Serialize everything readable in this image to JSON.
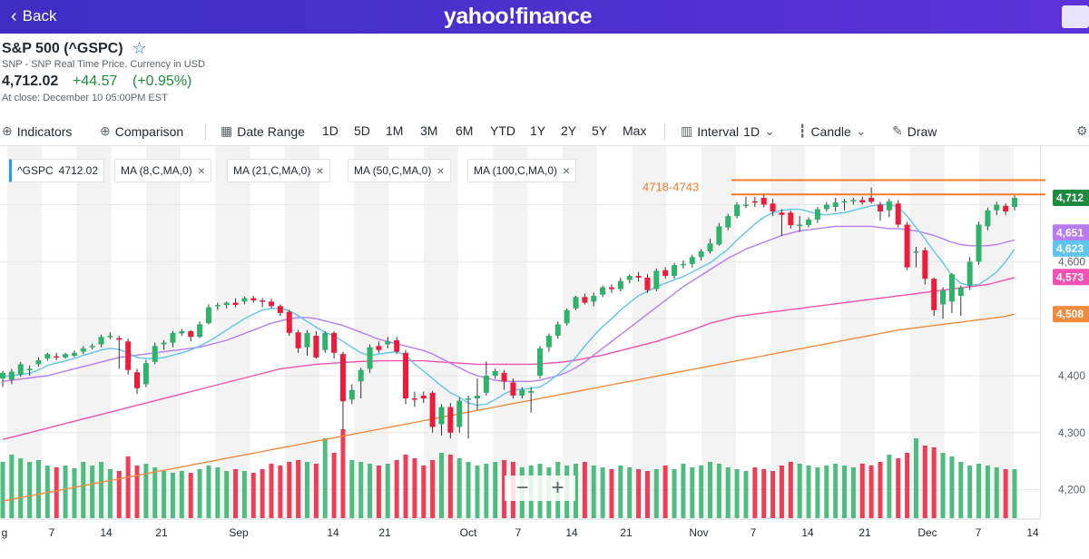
{
  "header": {
    "back_label": "Back",
    "logo": "yahoo!finance"
  },
  "quote": {
    "title": "S&P 500 (^GSPC)",
    "subtitle": "SNP - SNP Real Time Price. Currency in USD",
    "price": "4,712.02",
    "change": "+44.57",
    "change_pct": "(+0.95%)",
    "close_time": "At close: December 10 05:00PM EST"
  },
  "toolbar": {
    "indicators": "Indicators",
    "comparison": "Comparison",
    "date_range": "Date Range",
    "ranges": [
      "1D",
      "5D",
      "1M",
      "3M",
      "6M",
      "YTD",
      "1Y",
      "2Y",
      "5Y",
      "Max"
    ],
    "interval": "Interval",
    "interval_value": "1D",
    "candle": "Candle",
    "draw": "Draw"
  },
  "legend": {
    "symbol": "^GSPC",
    "symbol_value": "4712.02",
    "ma8": "MA (8,C,MA,0)",
    "ma21": "MA (21,C,MA,0)",
    "ma50": "MA (50,C,MA,0)",
    "ma100": "MA (100,C,MA,0)"
  },
  "annotation": "4718-4743",
  "zoom": {
    "minus": "−",
    "plus": "+"
  },
  "colors": {
    "up": "#2fb36a",
    "down": "#ee1c3a",
    "ma8": "#5fc5ef",
    "ma21": "#b97cf0",
    "ma50": "#f051b4",
    "ma100": "#f08a3c",
    "annotation": "#f07c2a",
    "price_tag": "#1d8a3e"
  },
  "chart_data": {
    "type": "candlestick",
    "y_ticks": [
      "4,712",
      "4,651",
      "4,623",
      "4,600",
      "4,573",
      "4,508",
      "4,400",
      "4,300",
      "4,200"
    ],
    "x_ticks": [
      "g",
      "7",
      "14",
      "21",
      "Sep",
      "14",
      "21",
      "Oct",
      "7",
      "14",
      "21",
      "Nov",
      "7",
      "14",
      "21",
      "Dec",
      "7",
      "14"
    ],
    "ylim": [
      4150,
      4790
    ],
    "zones": [
      4718,
      4743
    ],
    "candles": [
      [
        4395,
        4405,
        4380,
        4408
      ],
      [
        4393,
        4407,
        4385,
        4412
      ],
      [
        4402,
        4420,
        4398,
        4424
      ],
      [
        4410,
        4412,
        4400,
        4418
      ],
      [
        4420,
        4427,
        4416,
        4432
      ],
      [
        4430,
        4438,
        4426,
        4440
      ],
      [
        4434,
        4432,
        4427,
        4440
      ],
      [
        4432,
        4438,
        4430,
        4440
      ],
      [
        4435,
        4440,
        4432,
        4444
      ],
      [
        4442,
        4448,
        4438,
        4452
      ],
      [
        4450,
        4452,
        4446,
        4456
      ],
      [
        4455,
        4468,
        4450,
        4472
      ],
      [
        4468,
        4470,
        4464,
        4476
      ],
      [
        4466,
        4463,
        4412,
        4470
      ],
      [
        4460,
        4410,
        4402,
        4465
      ],
      [
        4406,
        4378,
        4368,
        4412
      ],
      [
        4385,
        4422,
        4380,
        4428
      ],
      [
        4424,
        4452,
        4420,
        4458
      ],
      [
        4455,
        4458,
        4445,
        4462
      ],
      [
        4458,
        4475,
        4450,
        4478
      ],
      [
        4474,
        4478,
        4470,
        4482
      ],
      [
        4478,
        4468,
        4460,
        4480
      ],
      [
        4468,
        4490,
        4466,
        4495
      ],
      [
        4492,
        4520,
        4490,
        4525
      ],
      [
        4522,
        4524,
        4515,
        4528
      ],
      [
        4524,
        4528,
        4518,
        4530
      ],
      [
        4528,
        4524,
        4520,
        4536
      ],
      [
        4530,
        4536,
        4525,
        4539
      ],
      [
        4536,
        4532,
        4528,
        4540
      ],
      [
        4532,
        4530,
        4520,
        4536
      ],
      [
        4530,
        4522,
        4518,
        4535
      ],
      [
        4522,
        4510,
        4505,
        4525
      ],
      [
        4512,
        4475,
        4470,
        4515
      ],
      [
        4476,
        4448,
        4440,
        4480
      ],
      [
        4450,
        4475,
        4435,
        4480
      ],
      [
        4470,
        4432,
        4430,
        4478
      ],
      [
        4445,
        4475,
        4440,
        4478
      ],
      [
        4475,
        4440,
        4430,
        4478
      ],
      [
        4438,
        4355,
        4305,
        4442
      ],
      [
        4358,
        4375,
        4350,
        4385
      ],
      [
        4390,
        4410,
        4360,
        4414
      ],
      [
        4412,
        4450,
        4405,
        4455
      ],
      [
        4452,
        4445,
        4440,
        4460
      ],
      [
        4455,
        4460,
        4448,
        4468
      ],
      [
        4462,
        4442,
        4438,
        4468
      ],
      [
        4440,
        4360,
        4350,
        4445
      ],
      [
        4360,
        4358,
        4345,
        4372
      ],
      [
        4365,
        4360,
        4352,
        4372
      ],
      [
        4370,
        4310,
        4300,
        4373
      ],
      [
        4315,
        4345,
        4295,
        4350
      ],
      [
        4345,
        4300,
        4290,
        4352
      ],
      [
        4310,
        4356,
        4300,
        4362
      ],
      [
        4360,
        4360,
        4290,
        4365
      ],
      [
        4360,
        4365,
        4340,
        4395
      ],
      [
        4370,
        4400,
        4365,
        4425
      ],
      [
        4400,
        4408,
        4395,
        4412
      ],
      [
        4405,
        4390,
        4375,
        4410
      ],
      [
        4388,
        4365,
        4360,
        4395
      ],
      [
        4365,
        4375,
        4360,
        4380
      ],
      [
        4370,
        4373,
        4335,
        4380
      ],
      [
        4400,
        4448,
        4395,
        4452
      ],
      [
        4450,
        4470,
        4442,
        4474
      ],
      [
        4470,
        4490,
        4465,
        4495
      ],
      [
        4492,
        4515,
        4488,
        4518
      ],
      [
        4518,
        4538,
        4515,
        4540
      ],
      [
        4538,
        4528,
        4525,
        4544
      ],
      [
        4530,
        4540,
        4522,
        4546
      ],
      [
        4542,
        4555,
        4538,
        4558
      ],
      [
        4555,
        4552,
        4545,
        4560
      ],
      [
        4552,
        4566,
        4548,
        4572
      ],
      [
        4568,
        4575,
        4562,
        4578
      ],
      [
        4575,
        4572,
        4565,
        4582
      ],
      [
        4572,
        4550,
        4545,
        4578
      ],
      [
        4552,
        4584,
        4548,
        4588
      ],
      [
        4585,
        4575,
        4570,
        4590
      ],
      [
        4575,
        4594,
        4570,
        4598
      ],
      [
        4594,
        4596,
        4588,
        4602
      ],
      [
        4596,
        4608,
        4590,
        4612
      ],
      [
        4608,
        4618,
        4602,
        4622
      ],
      [
        4618,
        4632,
        4614,
        4640
      ],
      [
        4630,
        4662,
        4628,
        4668
      ],
      [
        4660,
        4680,
        4655,
        4684
      ],
      [
        4680,
        4700,
        4676,
        4704
      ],
      [
        4700,
        4700,
        4694,
        4714
      ],
      [
        4706,
        4704,
        4696,
        4714
      ],
      [
        4712,
        4700,
        4695,
        4720
      ],
      [
        4702,
        4688,
        4680,
        4710
      ],
      [
        4686,
        4682,
        4645,
        4692
      ],
      [
        4686,
        4664,
        4658,
        4690
      ],
      [
        4664,
        4665,
        4652,
        4680
      ],
      [
        4664,
        4674,
        4660,
        4678
      ],
      [
        4674,
        4692,
        4668,
        4696
      ],
      [
        4692,
        4700,
        4688,
        4704
      ],
      [
        4696,
        4704,
        4688,
        4712
      ],
      [
        4704,
        4706,
        4690,
        4710
      ],
      [
        4706,
        4708,
        4700,
        4712
      ],
      [
        4708,
        4704,
        4700,
        4714
      ],
      [
        4712,
        4705,
        4702,
        4730
      ],
      [
        4700,
        4688,
        4672,
        4705
      ],
      [
        4690,
        4706,
        4678,
        4710
      ],
      [
        4702,
        4665,
        4660,
        4708
      ],
      [
        4665,
        4590,
        4585,
        4670
      ],
      [
        4618,
        4618,
        4590,
        4626
      ],
      [
        4620,
        4570,
        4560,
        4625
      ],
      [
        4570,
        4515,
        4505,
        4572
      ],
      [
        4525,
        4550,
        4500,
        4555
      ],
      [
        4530,
        4578,
        4510,
        4580
      ],
      [
        4540,
        4555,
        4505,
        4558
      ],
      [
        4558,
        4600,
        4550,
        4608
      ],
      [
        4600,
        4665,
        4595,
        4670
      ],
      [
        4662,
        4690,
        4655,
        4695
      ],
      [
        4690,
        4700,
        4682,
        4705
      ],
      [
        4698,
        4688,
        4682,
        4702
      ],
      [
        4696,
        4712,
        4690,
        4716
      ]
    ],
    "ma8": [
      4398,
      4400,
      4402,
      4404,
      4410,
      4418,
      4422,
      4426,
      4430,
      4436,
      4440,
      4445,
      4448,
      4446,
      4440,
      4432,
      4430,
      4430,
      4432,
      4436,
      4440,
      4445,
      4452,
      4460,
      4470,
      4480,
      4490,
      4500,
      4508,
      4515,
      4518,
      4518,
      4514,
      4505,
      4495,
      4485,
      4476,
      4470,
      4460,
      4450,
      4440,
      4435,
      4438,
      4440,
      4442,
      4436,
      4420,
      4408,
      4395,
      4382,
      4370,
      4362,
      4352,
      4348,
      4350,
      4358,
      4368,
      4375,
      4376,
      4378,
      4380,
      4390,
      4402,
      4416,
      4432,
      4452,
      4470,
      4486,
      4500,
      4515,
      4528,
      4540,
      4548,
      4556,
      4562,
      4568,
      4574,
      4582,
      4590,
      4598,
      4610,
      4622,
      4638,
      4652,
      4666,
      4678,
      4686,
      4690,
      4692,
      4692,
      4688,
      4684,
      4682,
      4684,
      4686,
      4690,
      4694,
      4698,
      4700,
      4700,
      4696,
      4680,
      4660,
      4640,
      4618,
      4598,
      4575,
      4562,
      4558,
      4560,
      4570,
      4582,
      4600,
      4622
    ],
    "ma21": [
      4390,
      4392,
      4394,
      4396,
      4398,
      4400,
      4404,
      4408,
      4412,
      4416,
      4420,
      4424,
      4428,
      4432,
      4434,
      4436,
      4438,
      4440,
      4442,
      4444,
      4446,
      4448,
      4450,
      4454,
      4458,
      4462,
      4468,
      4474,
      4480,
      4486,
      4492,
      4496,
      4500,
      4502,
      4502,
      4500,
      4496,
      4492,
      4488,
      4482,
      4476,
      4470,
      4464,
      4460,
      4456,
      4452,
      4448,
      4444,
      4438,
      4430,
      4422,
      4414,
      4406,
      4400,
      4396,
      4392,
      4390,
      4390,
      4390,
      4390,
      4392,
      4396,
      4400,
      4406,
      4414,
      4424,
      4436,
      4448,
      4460,
      4472,
      4484,
      4496,
      4508,
      4520,
      4532,
      4544,
      4556,
      4566,
      4576,
      4586,
      4596,
      4606,
      4614,
      4622,
      4628,
      4634,
      4640,
      4646,
      4650,
      4654,
      4656,
      4658,
      4660,
      4662,
      4662,
      4662,
      4662,
      4662,
      4660,
      4658,
      4658,
      4656,
      4654,
      4650,
      4646,
      4640,
      4634,
      4630,
      4628,
      4628,
      4628,
      4630,
      4634,
      4638
    ],
    "ma50": [
      4288,
      4292,
      4296,
      4300,
      4304,
      4308,
      4312,
      4316,
      4320,
      4324,
      4328,
      4332,
      4336,
      4340,
      4344,
      4348,
      4352,
      4356,
      4360,
      4364,
      4368,
      4372,
      4376,
      4380,
      4384,
      4388,
      4392,
      4396,
      4400,
      4404,
      4408,
      4412,
      4414,
      4416,
      4418,
      4420,
      4421,
      4422,
      4423,
      4424,
      4425,
      4425,
      4426,
      4426,
      4426,
      4426,
      4426,
      4426,
      4425,
      4424,
      4423,
      4422,
      4421,
      4420,
      4420,
      4420,
      4420,
      4420,
      4420,
      4420,
      4421,
      4422,
      4423,
      4425,
      4427,
      4430,
      4433,
      4436,
      4440,
      4444,
      4448,
      4452,
      4456,
      4460,
      4465,
      4470,
      4475,
      4480,
      4486,
      4492,
      4496,
      4500,
      4504,
      4506,
      4508,
      4510,
      4512,
      4514,
      4516,
      4518,
      4520,
      4522,
      4524,
      4526,
      4528,
      4530,
      4532,
      4534,
      4536,
      4538,
      4540,
      4542,
      4544,
      4546,
      4548,
      4550,
      4552,
      4554,
      4556,
      4558,
      4560,
      4564,
      4568,
      4572
    ],
    "ma100": [
      4180,
      4183,
      4186,
      4189,
      4192,
      4195,
      4198,
      4201,
      4204,
      4207,
      4210,
      4213,
      4216,
      4219,
      4222,
      4225,
      4228,
      4231,
      4234,
      4237,
      4240,
      4243,
      4246,
      4249,
      4252,
      4255,
      4258,
      4261,
      4264,
      4267,
      4270,
      4273,
      4276,
      4279,
      4282,
      4285,
      4288,
      4291,
      4294,
      4297,
      4300,
      4303,
      4306,
      4309,
      4312,
      4315,
      4318,
      4321,
      4324,
      4327,
      4330,
      4333,
      4336,
      4339,
      4342,
      4345,
      4348,
      4351,
      4354,
      4357,
      4360,
      4363,
      4366,
      4369,
      4372,
      4375,
      4378,
      4381,
      4384,
      4387,
      4390,
      4393,
      4396,
      4399,
      4402,
      4405,
      4408,
      4411,
      4414,
      4417,
      4420,
      4423,
      4426,
      4429,
      4432,
      4435,
      4438,
      4441,
      4444,
      4447,
      4450,
      4453,
      4456,
      4459,
      4462,
      4465,
      4468,
      4471,
      4474,
      4477,
      4480,
      4482,
      4484,
      4486,
      4488,
      4490,
      4492,
      4494,
      4496,
      4498,
      4500,
      4502,
      4504,
      4508
    ],
    "volume": [
      62,
      70,
      66,
      62,
      64,
      58,
      56,
      58,
      55,
      62,
      58,
      62,
      54,
      52,
      68,
      58,
      60,
      56,
      52,
      50,
      52,
      50,
      54,
      58,
      56,
      52,
      54,
      52,
      50,
      54,
      60,
      58,
      62,
      64,
      62,
      60,
      88,
      72,
      98,
      64,
      62,
      60,
      58,
      60,
      64,
      70,
      66,
      58,
      64,
      72,
      70,
      66,
      62,
      58,
      60,
      62,
      64,
      62,
      56,
      58,
      60,
      56,
      62,
      58,
      60,
      62,
      58,
      56,
      54,
      58,
      56,
      54,
      52,
      54,
      58,
      54,
      60,
      56,
      58,
      62,
      60,
      56,
      54,
      52,
      56,
      54,
      52,
      58,
      62,
      60,
      58,
      56,
      58,
      60,
      58,
      56,
      60,
      58,
      62,
      70,
      66,
      72,
      88,
      80,
      78,
      72,
      68,
      62,
      58,
      60,
      58,
      56,
      54,
      54
    ]
  }
}
